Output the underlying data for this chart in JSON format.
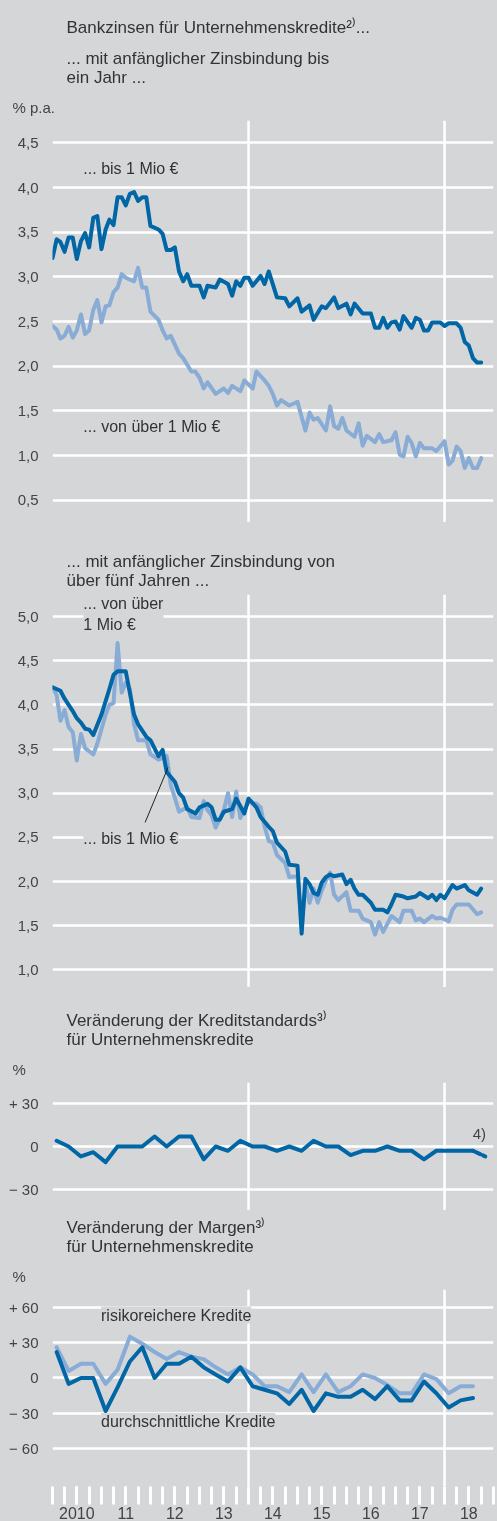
{
  "chart_data": [
    {
      "type": "line",
      "title": "Bankzinsen für Unternehmenskredite²⁾...",
      "subtitle": "... mit anfänglicher Zinsbindung bis\n    ein Jahr ...",
      "ylabel": "% p.a.",
      "xlim": [
        "2010-01",
        "2019-01"
      ],
      "ylim": [
        0.25,
        4.75
      ],
      "yticks": [
        {
          "value": 0.5,
          "label": "0,5"
        },
        {
          "value": 1.0,
          "label": "1,0"
        },
        {
          "value": 1.5,
          "label": "1,5"
        },
        {
          "value": 2.0,
          "label": "2,0"
        },
        {
          "value": 2.5,
          "label": "2,5"
        },
        {
          "value": 3.0,
          "label": "3,0"
        },
        {
          "value": 3.5,
          "label": "3,5"
        },
        {
          "value": 4.0,
          "label": "4,0"
        },
        {
          "value": 4.5,
          "label": "4,5"
        }
      ],
      "grid": "y",
      "tick_labels": "y",
      "ref_lines": [
        {
          "axis": "x",
          "value": "2014-01",
          "color": "#ffffff"
        },
        {
          "axis": "x",
          "value": "2018-01",
          "color": "#ffffff"
        }
      ],
      "series": [
        {
          "name": "... bis 1 Mio €",
          "color": "#0066a6",
          "x": [
            "2010-01",
            "2010-02",
            "2010-03",
            "2010-04",
            "2010-05",
            "2010-06",
            "2010-07",
            "2010-08",
            "2010-09",
            "2010-10",
            "2010-11",
            "2010-12",
            "2011-01",
            "2011-02",
            "2011-03",
            "2011-04",
            "2011-05",
            "2011-06",
            "2011-07",
            "2011-08",
            "2011-09",
            "2011-10",
            "2011-11",
            "2011-12",
            "2012-01",
            "2012-03",
            "2012-04",
            "2012-05",
            "2012-06",
            "2012-07",
            "2012-08",
            "2012-09",
            "2012-10",
            "2012-11",
            "2013-01",
            "2013-02",
            "2013-03",
            "2013-05",
            "2013-06",
            "2013-08",
            "2013-09",
            "2013-10",
            "2013-11",
            "2013-12",
            "2014-01",
            "2014-02",
            "2014-04",
            "2014-05",
            "2014-06",
            "2014-08",
            "2014-10",
            "2014-11",
            "2015-01",
            "2015-02",
            "2015-04",
            "2015-05",
            "2015-07",
            "2015-08",
            "2015-10",
            "2015-11",
            "2016-01",
            "2016-02",
            "2016-03",
            "2016-05",
            "2016-07",
            "2016-08",
            "2016-09",
            "2016-10",
            "2016-11",
            "2016-12",
            "2017-01",
            "2017-02",
            "2017-03",
            "2017-05",
            "2017-06",
            "2017-07",
            "2017-08",
            "2017-09",
            "2017-10",
            "2017-12",
            "2018-01",
            "2018-02",
            "2018-04",
            "2018-05",
            "2018-06",
            "2018-07",
            "2018-08",
            "2018-09",
            "2018-10"
          ],
          "values": [
            3.21,
            3.42,
            3.39,
            3.28,
            3.44,
            3.44,
            3.2,
            3.4,
            3.49,
            3.33,
            3.66,
            3.68,
            3.31,
            3.53,
            3.64,
            3.58,
            3.89,
            3.89,
            3.8,
            3.93,
            3.95,
            3.85,
            3.89,
            3.89,
            3.57,
            3.53,
            3.48,
            3.3,
            3.3,
            3.33,
            3.06,
            2.95,
            3.03,
            2.9,
            2.9,
            2.77,
            2.9,
            2.88,
            2.97,
            2.92,
            2.79,
            2.95,
            2.9,
            2.99,
            2.99,
            2.9,
            3.01,
            2.92,
            3.06,
            2.77,
            2.76,
            2.67,
            2.76,
            2.61,
            2.68,
            2.52,
            2.67,
            2.65,
            2.77,
            2.65,
            2.7,
            2.58,
            2.7,
            2.59,
            2.59,
            2.43,
            2.43,
            2.54,
            2.43,
            2.49,
            2.5,
            2.41,
            2.56,
            2.43,
            2.54,
            2.52,
            2.4,
            2.4,
            2.49,
            2.49,
            2.45,
            2.48,
            2.48,
            2.43,
            2.27,
            2.23,
            2.09,
            2.04,
            2.04
          ]
        },
        {
          "name": "... von über 1 Mio €",
          "color": "#88acd6",
          "x": [
            "2010-01",
            "2010-02",
            "2010-03",
            "2010-04",
            "2010-05",
            "2010-06",
            "2010-07",
            "2010-08",
            "2010-09",
            "2010-10",
            "2010-11",
            "2010-12",
            "2011-01",
            "2011-02",
            "2011-03",
            "2011-04",
            "2011-05",
            "2011-06",
            "2011-07",
            "2011-09",
            "2011-10",
            "2011-11",
            "2011-12",
            "2012-01",
            "2012-03",
            "2012-04",
            "2012-05",
            "2012-06",
            "2012-08",
            "2012-09",
            "2012-11",
            "2012-12",
            "2013-01",
            "2013-02",
            "2013-03",
            "2013-05",
            "2013-07",
            "2013-08",
            "2013-09",
            "2013-11",
            "2013-12",
            "2014-02",
            "2014-03",
            "2014-05",
            "2014-06",
            "2014-07",
            "2014-08",
            "2014-09",
            "2014-11",
            "2015-01",
            "2015-03",
            "2015-04",
            "2015-05",
            "2015-06",
            "2015-08",
            "2015-09",
            "2015-10",
            "2015-11",
            "2015-12",
            "2016-01",
            "2016-03",
            "2016-04",
            "2016-05",
            "2016-06",
            "2016-08",
            "2016-09",
            "2016-10",
            "2016-12",
            "2017-01",
            "2017-02",
            "2017-03",
            "2017-04",
            "2017-05",
            "2017-06",
            "2017-07",
            "2017-08",
            "2017-10",
            "2017-11",
            "2018-01",
            "2018-02",
            "2018-03",
            "2018-04",
            "2018-05",
            "2018-06",
            "2018-07",
            "2018-08",
            "2018-09",
            "2018-10"
          ],
          "values": [
            2.45,
            2.41,
            2.31,
            2.34,
            2.44,
            2.32,
            2.4,
            2.58,
            2.36,
            2.4,
            2.63,
            2.74,
            2.49,
            2.67,
            2.68,
            2.83,
            2.88,
            3.03,
            2.99,
            2.95,
            3.1,
            2.88,
            2.88,
            2.61,
            2.52,
            2.4,
            2.31,
            2.34,
            2.14,
            2.09,
            1.94,
            1.94,
            1.87,
            1.75,
            1.82,
            1.69,
            1.75,
            1.7,
            1.78,
            1.72,
            1.84,
            1.75,
            1.94,
            1.84,
            1.78,
            1.69,
            1.56,
            1.62,
            1.56,
            1.6,
            1.28,
            1.48,
            1.4,
            1.42,
            1.28,
            1.55,
            1.33,
            1.3,
            1.42,
            1.28,
            1.21,
            1.36,
            1.11,
            1.22,
            1.15,
            1.24,
            1.15,
            1.17,
            1.26,
            1.01,
            0.99,
            1.21,
            1.14,
            0.99,
            1.14,
            1.08,
            1.08,
            1.05,
            1.16,
            0.9,
            0.94,
            1.1,
            1.05,
            0.86,
            0.97,
            0.86,
            0.86,
            0.97
          ]
        }
      ]
    },
    {
      "type": "line",
      "subtitle": "... mit anfänglicher Zinsbindung von\n    über fünf Jahren ...",
      "xlim": [
        "2010-01",
        "2019-01"
      ],
      "ylim": [
        0.8,
        5.25
      ],
      "yticks": [
        {
          "value": 1.0,
          "label": "1,0"
        },
        {
          "value": 1.5,
          "label": "1,5"
        },
        {
          "value": 2.0,
          "label": "2,0"
        },
        {
          "value": 2.5,
          "label": "2,5"
        },
        {
          "value": 3.0,
          "label": "3,0"
        },
        {
          "value": 3.5,
          "label": "3,5"
        },
        {
          "value": 4.0,
          "label": "4,0"
        },
        {
          "value": 4.5,
          "label": "4,5"
        },
        {
          "value": 5.0,
          "label": "5,0"
        }
      ],
      "grid": "y",
      "tick_labels": "y",
      "ref_lines": [
        {
          "axis": "x",
          "value": "2014-01",
          "color": "#ffffff"
        },
        {
          "axis": "x",
          "value": "2018-01",
          "color": "#ffffff"
        }
      ],
      "series": [
        {
          "name": "... von über\n1 Mio €",
          "color": "#88acd6",
          "x": [
            "2010-01",
            "2010-02",
            "2010-03",
            "2010-04",
            "2010-05",
            "2010-06",
            "2010-07",
            "2010-08",
            "2010-09",
            "2010-11",
            "2010-12",
            "2011-02",
            "2011-03",
            "2011-04",
            "2011-05",
            "2011-06",
            "2011-07",
            "2011-08",
            "2011-09",
            "2011-10",
            "2011-12",
            "2012-01",
            "2012-03",
            "2012-04",
            "2012-05",
            "2012-06",
            "2012-07",
            "2012-08",
            "2012-10",
            "2012-11",
            "2013-01",
            "2013-02",
            "2013-03",
            "2013-04",
            "2013-05",
            "2013-07",
            "2013-08",
            "2013-09",
            "2013-10",
            "2013-11",
            "2014-01",
            "2014-03",
            "2014-04",
            "2014-05",
            "2014-06",
            "2014-07",
            "2014-08",
            "2014-10",
            "2014-11",
            "2015-01",
            "2015-02",
            "2015-03",
            "2015-04",
            "2015-05",
            "2015-06",
            "2015-07",
            "2015-08",
            "2015-09",
            "2015-10",
            "2015-11",
            "2016-01",
            "2016-02",
            "2016-04",
            "2016-05",
            "2016-07",
            "2016-08",
            "2016-09",
            "2016-10",
            "2016-12",
            "2017-02",
            "2017-03",
            "2017-05",
            "2017-06",
            "2017-07",
            "2017-08",
            "2017-10",
            "2017-11",
            "2017-12",
            "2018-02",
            "2018-03",
            "2018-04",
            "2018-06",
            "2018-07",
            "2018-09",
            "2018-10"
          ],
          "values": [
            4.2,
            4.11,
            3.82,
            3.94,
            3.75,
            3.69,
            3.37,
            3.67,
            3.51,
            3.44,
            3.56,
            3.89,
            4.0,
            4.02,
            4.7,
            4.14,
            4.25,
            4.18,
            3.78,
            3.6,
            3.6,
            3.44,
            3.38,
            3.4,
            3.42,
            3.09,
            2.95,
            2.79,
            2.84,
            2.73,
            2.72,
            2.91,
            2.81,
            2.75,
            2.61,
            2.81,
            3.0,
            2.73,
            3.02,
            2.72,
            2.9,
            2.88,
            2.84,
            2.62,
            2.46,
            2.44,
            2.3,
            2.21,
            2.05,
            2.06,
            1.52,
            1.97,
            1.76,
            1.92,
            1.76,
            1.9,
            2.01,
            2.1,
            1.85,
            1.79,
            1.88,
            1.67,
            1.67,
            1.58,
            1.54,
            1.4,
            1.54,
            1.43,
            1.61,
            1.54,
            1.67,
            1.67,
            1.56,
            1.58,
            1.54,
            1.61,
            1.58,
            1.59,
            1.55,
            1.68,
            1.74,
            1.74,
            1.74,
            1.63,
            1.65
          ]
        },
        {
          "name": "... bis 1 Mio €",
          "color": "#0066a6",
          "x": [
            "2010-01",
            "2010-03",
            "2010-04",
            "2010-06",
            "2010-07",
            "2010-08",
            "2010-09",
            "2010-10",
            "2010-11",
            "2011-01",
            "2011-03",
            "2011-04",
            "2011-05",
            "2011-06",
            "2011-07",
            "2011-09",
            "2011-10",
            "2011-12",
            "2012-01",
            "2012-03",
            "2012-04",
            "2012-05",
            "2012-07",
            "2012-08",
            "2012-09",
            "2012-10",
            "2012-12",
            "2013-01",
            "2013-03",
            "2013-04",
            "2013-05",
            "2013-06",
            "2013-07",
            "2013-09",
            "2013-10",
            "2013-12",
            "2014-01",
            "2014-03",
            "2014-04",
            "2014-06",
            "2014-07",
            "2014-08",
            "2014-10",
            "2014-11",
            "2015-01",
            "2015-02",
            "2015-03",
            "2015-04",
            "2015-05",
            "2015-06",
            "2015-07",
            "2015-08",
            "2015-09",
            "2015-10",
            "2015-12",
            "2016-01",
            "2016-02",
            "2016-03",
            "2016-04",
            "2016-05",
            "2016-07",
            "2016-08",
            "2016-10",
            "2016-11",
            "2016-12",
            "2017-01",
            "2017-03",
            "2017-04",
            "2017-06",
            "2017-07",
            "2017-09",
            "2017-10",
            "2017-11",
            "2017-12",
            "2018-01",
            "2018-03",
            "2018-04",
            "2018-06",
            "2018-07",
            "2018-09",
            "2018-10"
          ],
          "values": [
            4.2,
            4.16,
            4.07,
            3.93,
            3.85,
            3.8,
            3.73,
            3.72,
            3.66,
            3.89,
            4.18,
            4.34,
            4.38,
            4.38,
            4.38,
            3.89,
            3.78,
            3.64,
            3.6,
            3.42,
            3.49,
            3.24,
            3.13,
            3.0,
            2.95,
            2.82,
            2.77,
            2.84,
            2.88,
            2.84,
            2.7,
            2.7,
            2.79,
            2.82,
            2.94,
            2.77,
            2.94,
            2.84,
            2.73,
            2.62,
            2.57,
            2.44,
            2.34,
            2.19,
            2.18,
            1.41,
            2.03,
            1.97,
            1.87,
            1.85,
            1.99,
            2.05,
            2.08,
            2.06,
            2.08,
            1.97,
            2.02,
            1.92,
            1.85,
            1.85,
            1.76,
            1.68,
            1.68,
            1.65,
            1.74,
            1.85,
            1.83,
            1.81,
            1.83,
            1.87,
            1.81,
            1.85,
            1.79,
            1.85,
            1.81,
            1.96,
            1.92,
            1.96,
            1.9,
            1.85,
            1.92
          ]
        }
      ]
    },
    {
      "type": "line",
      "title": "Veränderung der Kreditstandards³⁾\nfür Unternehmenskredite",
      "ylabel": "%",
      "xlim": [
        "2010-01",
        "2019-01"
      ],
      "ylim": [
        -45,
        45
      ],
      "yticks": [
        {
          "value": -30,
          "label": "− 30"
        },
        0,
        {
          "value": 30,
          "label": "+ 30"
        }
      ],
      "grid": "y",
      "tick_labels": "y",
      "ref_lines": [
        {
          "axis": "x",
          "value": "2014-01",
          "color": "#ffffff"
        },
        {
          "axis": "x",
          "value": "2018-01",
          "color": "#ffffff"
        }
      ],
      "annotations": [
        {
          "text": "4)",
          "x": "2018-11",
          "y": -7
        }
      ],
      "x": [
        "2010-02",
        "2010-05",
        "2010-08",
        "2010-11",
        "2011-02",
        "2011-05",
        "2011-08",
        "2011-11",
        "2012-02",
        "2012-05",
        "2012-08",
        "2012-11",
        "2013-02",
        "2013-05",
        "2013-08",
        "2013-11",
        "2014-02",
        "2014-05",
        "2014-08",
        "2014-11",
        "2015-02",
        "2015-05",
        "2015-08",
        "2015-11",
        "2016-02",
        "2016-05",
        "2016-08",
        "2016-11",
        "2017-02",
        "2017-05",
        "2017-08",
        "2017-11",
        "2018-02",
        "2018-05",
        "2018-08"
      ],
      "series": [
        {
          "color": "#0066a6",
          "values": [
            4,
            0,
            -7,
            -4,
            -11,
            0,
            0,
            0,
            7,
            0,
            7,
            7,
            -9,
            0,
            -3,
            4,
            0,
            0,
            -3,
            0,
            -3,
            4,
            0,
            0,
            -6,
            -3,
            -3,
            0,
            -3,
            -3,
            -9,
            -3,
            -3,
            -3,
            -3
          ]
        },
        {
          "color": "#0066a6",
          "line_style": "dashed",
          "x": [
            "2018-08",
            "2018-11"
          ],
          "values": [
            -3,
            -7
          ]
        }
      ]
    },
    {
      "type": "line",
      "title": "Veränderung der Margen³⁾\nfür Unternehmenskredite",
      "ylabel": "%",
      "xlim": [
        "2010-01",
        "2019-01"
      ],
      "ylim": [
        -92,
        75
      ],
      "yticks": [
        {
          "value": -60,
          "label": "− 60"
        },
        {
          "value": -30,
          "label": "− 30"
        },
        0,
        {
          "value": 30,
          "label": "+ 30"
        },
        {
          "value": 60,
          "label": "+ 60"
        }
      ],
      "xticks": [
        {
          "value": "2010-07",
          "label": "2010"
        },
        {
          "value": "2011-07",
          "label": "11"
        },
        {
          "value": "2012-07",
          "label": "12"
        },
        {
          "value": "2013-07",
          "label": "13"
        },
        {
          "value": "2014-07",
          "label": "14"
        },
        {
          "value": "2015-07",
          "label": "15"
        },
        {
          "value": "2016-07",
          "label": "16"
        },
        {
          "value": "2017-07",
          "label": "17"
        },
        {
          "value": "2018-07",
          "label": "18"
        }
      ],
      "grid": "y",
      "ref_lines": [
        {
          "axis": "x",
          "value": "2014-01",
          "color": "#ffffff"
        },
        {
          "axis": "x",
          "value": "2018-01",
          "color": "#ffffff"
        }
      ],
      "x": [
        "2010-02",
        "2010-05",
        "2010-08",
        "2010-11",
        "2011-02",
        "2011-05",
        "2011-08",
        "2011-11",
        "2012-02",
        "2012-05",
        "2012-08",
        "2012-11",
        "2013-02",
        "2013-05",
        "2013-08",
        "2013-11",
        "2014-02",
        "2014-05",
        "2014-08",
        "2014-11",
        "2015-02",
        "2015-05",
        "2015-08",
        "2015-11",
        "2016-02",
        "2016-05",
        "2016-08",
        "2016-11",
        "2017-02",
        "2017-05",
        "2017-08",
        "2017-11",
        "2018-02",
        "2018-05",
        "2018-08"
      ],
      "series": [
        {
          "name": "risikoreichere Kredite",
          "color": "#88acd6",
          "values": [
            26,
            6,
            12,
            12,
            -5,
            7,
            35,
            29,
            22,
            16,
            22,
            18,
            16,
            9,
            3,
            9,
            3,
            -7,
            -7,
            -12,
            3,
            -12,
            3,
            -12,
            -7,
            3,
            0,
            -6,
            -13,
            -13,
            3,
            -1,
            -13,
            -7,
            -7
          ]
        },
        {
          "name": "durchschnittliche Kredite",
          "color": "#0066a6",
          "values": [
            22,
            -5,
            0,
            0,
            -28,
            -8,
            14,
            26,
            0,
            12,
            12,
            18,
            9,
            3,
            -3,
            9,
            -7,
            -10,
            -13,
            -22,
            -10,
            -28,
            -13,
            -16,
            -16,
            -10,
            -18,
            -7,
            -19,
            -19,
            -3,
            -13,
            -25,
            -19,
            -17
          ]
        }
      ]
    }
  ]
}
